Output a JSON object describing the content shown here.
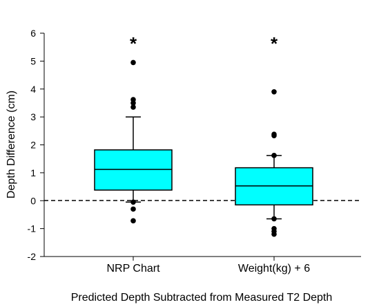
{
  "chart_data": {
    "type": "box",
    "xlabel": "Predicted Depth Subtracted from Measured T2 Depth",
    "ylabel": "Depth Difference (cm)",
    "ylim": [
      -2,
      6
    ],
    "yticks": [
      -2,
      -1,
      0,
      1,
      2,
      3,
      4,
      5,
      6
    ],
    "reference_line": {
      "y": 0,
      "style": "dashed"
    },
    "colors": {
      "box_fill": "#00FFFF",
      "stroke": "#000000"
    },
    "annotation": "*",
    "categories": [
      "NRP Chart",
      "Weight(kg) + 6"
    ],
    "boxes": [
      {
        "category": "NRP Chart",
        "q1": 0.38,
        "median": 1.12,
        "q3": 1.82,
        "whisker_low": -0.05,
        "whisker_high": 3.0,
        "outliers": [
          -0.05,
          -0.3,
          -0.72,
          3.35,
          3.5,
          3.62,
          4.95
        ],
        "annotation": "*"
      },
      {
        "category": "Weight(kg) + 6",
        "q1": -0.15,
        "median": 0.53,
        "q3": 1.18,
        "whisker_low": -0.65,
        "whisker_high": 1.62,
        "outliers": [
          -0.65,
          -1.0,
          -1.1,
          -1.2,
          1.62,
          2.33,
          2.38,
          3.9
        ],
        "annotation": "*"
      }
    ]
  }
}
